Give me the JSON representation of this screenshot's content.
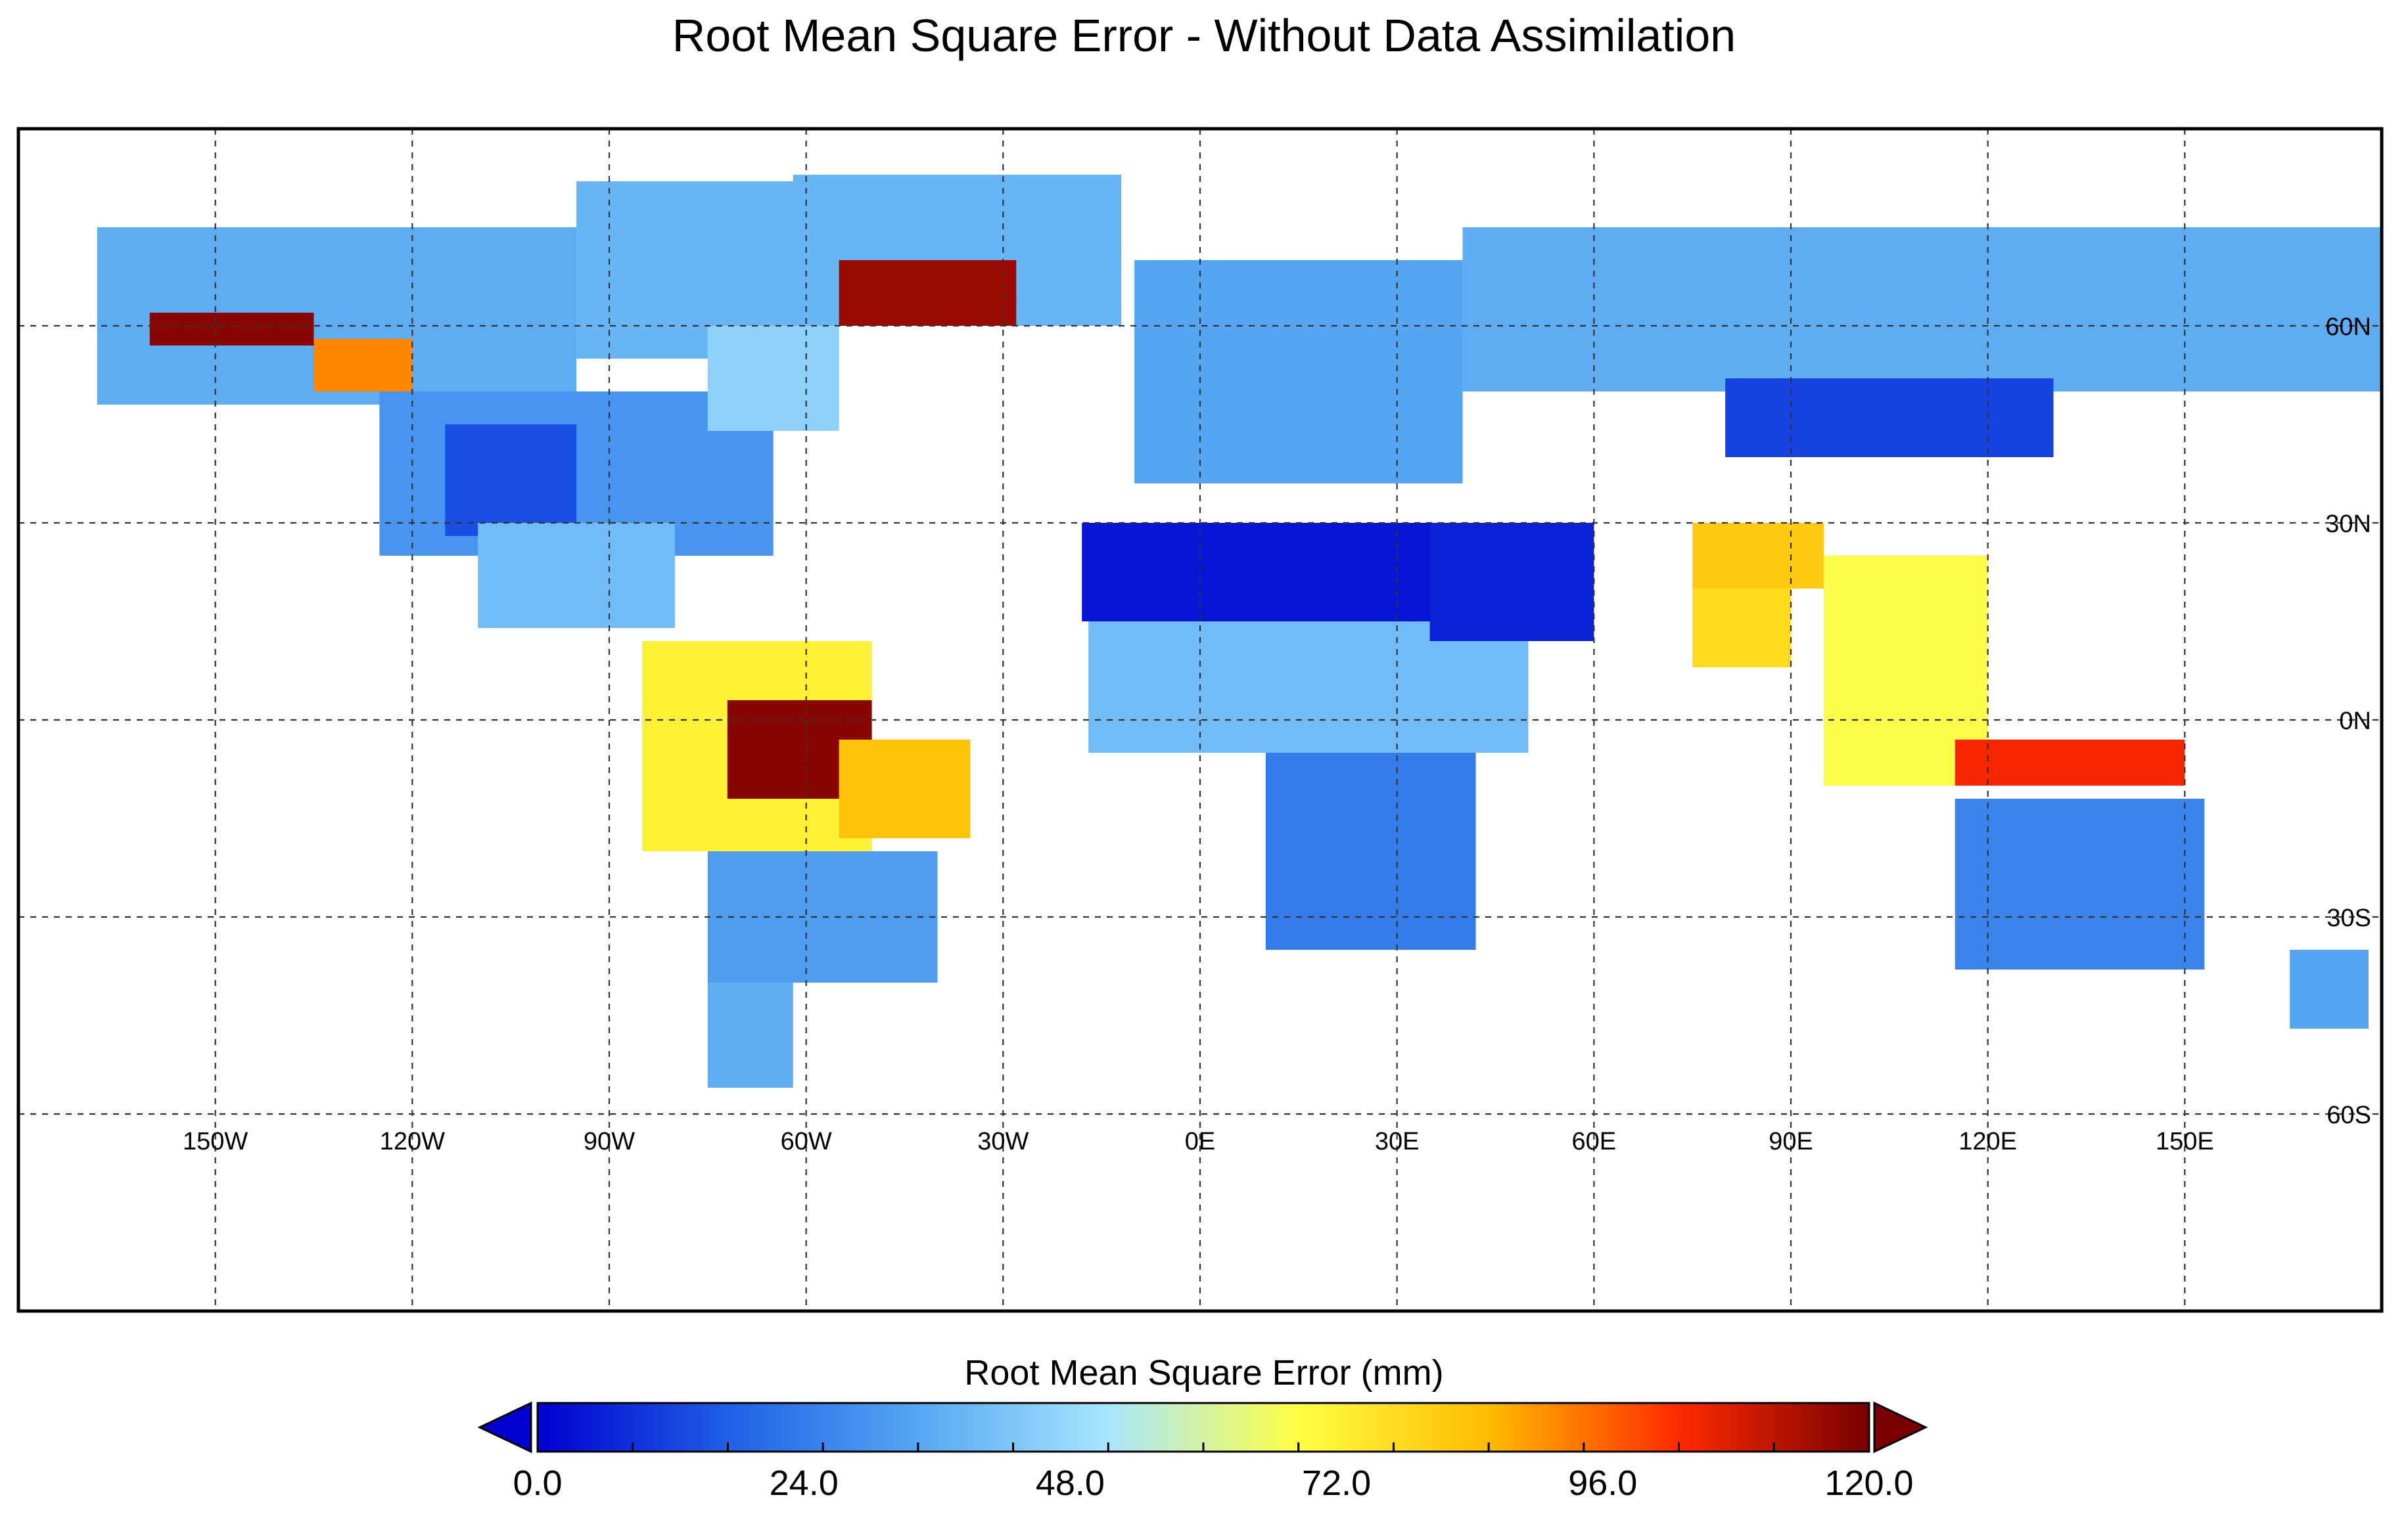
{
  "title": "Root Mean Square Error - Without Data Assimilation",
  "map": {
    "projection": "equirectangular",
    "lon_range": [
      -180,
      180
    ],
    "lat_range": [
      -90,
      90
    ],
    "gridlines": "dashed",
    "lon_ticks": [
      {
        "lon": -150,
        "label": "150W"
      },
      {
        "lon": -120,
        "label": "120W"
      },
      {
        "lon": -90,
        "label": "90W"
      },
      {
        "lon": -60,
        "label": "60W"
      },
      {
        "lon": -30,
        "label": "30W"
      },
      {
        "lon": 0,
        "label": "0E"
      },
      {
        "lon": 30,
        "label": "30E"
      },
      {
        "lon": 60,
        "label": "60E"
      },
      {
        "lon": 90,
        "label": "90E"
      },
      {
        "lon": 120,
        "label": "120E"
      },
      {
        "lon": 150,
        "label": "150E"
      }
    ],
    "lat_ticks": [
      {
        "lat": 60,
        "label": "60N"
      },
      {
        "lat": 30,
        "label": "30N"
      },
      {
        "lat": 0,
        "label": "0N"
      },
      {
        "lat": -30,
        "label": "30S"
      },
      {
        "lat": -60,
        "label": "60S"
      }
    ],
    "regions": [
      {
        "lon": [
          -168,
          -95
        ],
        "lat": [
          48,
          75
        ],
        "value": 36
      },
      {
        "lon": [
          -125,
          -65
        ],
        "lat": [
          25,
          50
        ],
        "value": 30
      },
      {
        "lon": [
          -115,
          -95
        ],
        "lat": [
          28,
          45
        ],
        "value": 14
      },
      {
        "lon": [
          -110,
          -80
        ],
        "lat": [
          14,
          30
        ],
        "value": 40
      },
      {
        "lon": [
          -95,
          -60
        ],
        "lat": [
          55,
          82
        ],
        "value": 38
      },
      {
        "lon": [
          -75,
          -55
        ],
        "lat": [
          44,
          60
        ],
        "value": 46
      },
      {
        "lon": [
          -160,
          -135
        ],
        "lat": [
          57,
          62
        ],
        "value": 118
      },
      {
        "lon": [
          -135,
          -120
        ],
        "lat": [
          50,
          58
        ],
        "value": 92
      },
      {
        "lon": [
          -62,
          -12
        ],
        "lat": [
          60,
          83
        ],
        "value": 38
      },
      {
        "lon": [
          -55,
          -28
        ],
        "lat": [
          60,
          70
        ],
        "value": 116
      },
      {
        "lon": [
          -85,
          -50
        ],
        "lat": [
          -20,
          12
        ],
        "value": 72
      },
      {
        "lon": [
          -72,
          -50
        ],
        "lat": [
          -12,
          3
        ],
        "value": 118
      },
      {
        "lon": [
          -55,
          -35
        ],
        "lat": [
          -18,
          -3
        ],
        "value": 84
      },
      {
        "lon": [
          -75,
          -40
        ],
        "lat": [
          -40,
          -20
        ],
        "value": 32
      },
      {
        "lon": [
          -75,
          -62
        ],
        "lat": [
          -56,
          -40
        ],
        "value": 36
      },
      {
        "lon": [
          -18,
          45
        ],
        "lat": [
          15,
          30
        ],
        "value": 4
      },
      {
        "lon": [
          -17,
          50
        ],
        "lat": [
          -5,
          15
        ],
        "value": 40
      },
      {
        "lon": [
          10,
          42
        ],
        "lat": [
          -35,
          -5
        ],
        "value": 24
      },
      {
        "lon": [
          35,
          60
        ],
        "lat": [
          12,
          30
        ],
        "value": 6
      },
      {
        "lon": [
          -10,
          40
        ],
        "lat": [
          36,
          70
        ],
        "value": 34
      },
      {
        "lon": [
          40,
          180
        ],
        "lat": [
          50,
          75
        ],
        "value": 36
      },
      {
        "lon": [
          80,
          130
        ],
        "lat": [
          40,
          52
        ],
        "value": 12
      },
      {
        "lon": [
          75,
          95
        ],
        "lat": [
          20,
          30
        ],
        "value": 82
      },
      {
        "lon": [
          75,
          90
        ],
        "lat": [
          8,
          20
        ],
        "value": 78
      },
      {
        "lon": [
          95,
          120
        ],
        "lat": [
          -10,
          25
        ],
        "value": 68
      },
      {
        "lon": [
          115,
          150
        ],
        "lat": [
          -10,
          -3
        ],
        "value": 104
      },
      {
        "lon": [
          115,
          153
        ],
        "lat": [
          -38,
          -12
        ],
        "value": 26
      },
      {
        "lon": [
          166,
          178
        ],
        "lat": [
          -47,
          -35
        ],
        "value": 34
      }
    ]
  },
  "colorbar": {
    "label": "Root Mean Square Error (mm)",
    "min": 0,
    "max": 120,
    "tick_labels": [
      "0.0",
      "24.0",
      "48.0",
      "72.0",
      "96.0",
      "120.0"
    ],
    "colors": [
      "#0000d0",
      "#1f5fe6",
      "#56a7f2",
      "#a8e6ff",
      "#ffff44",
      "#ffbb00",
      "#ff2a00",
      "#780000"
    ],
    "extend": "both"
  }
}
